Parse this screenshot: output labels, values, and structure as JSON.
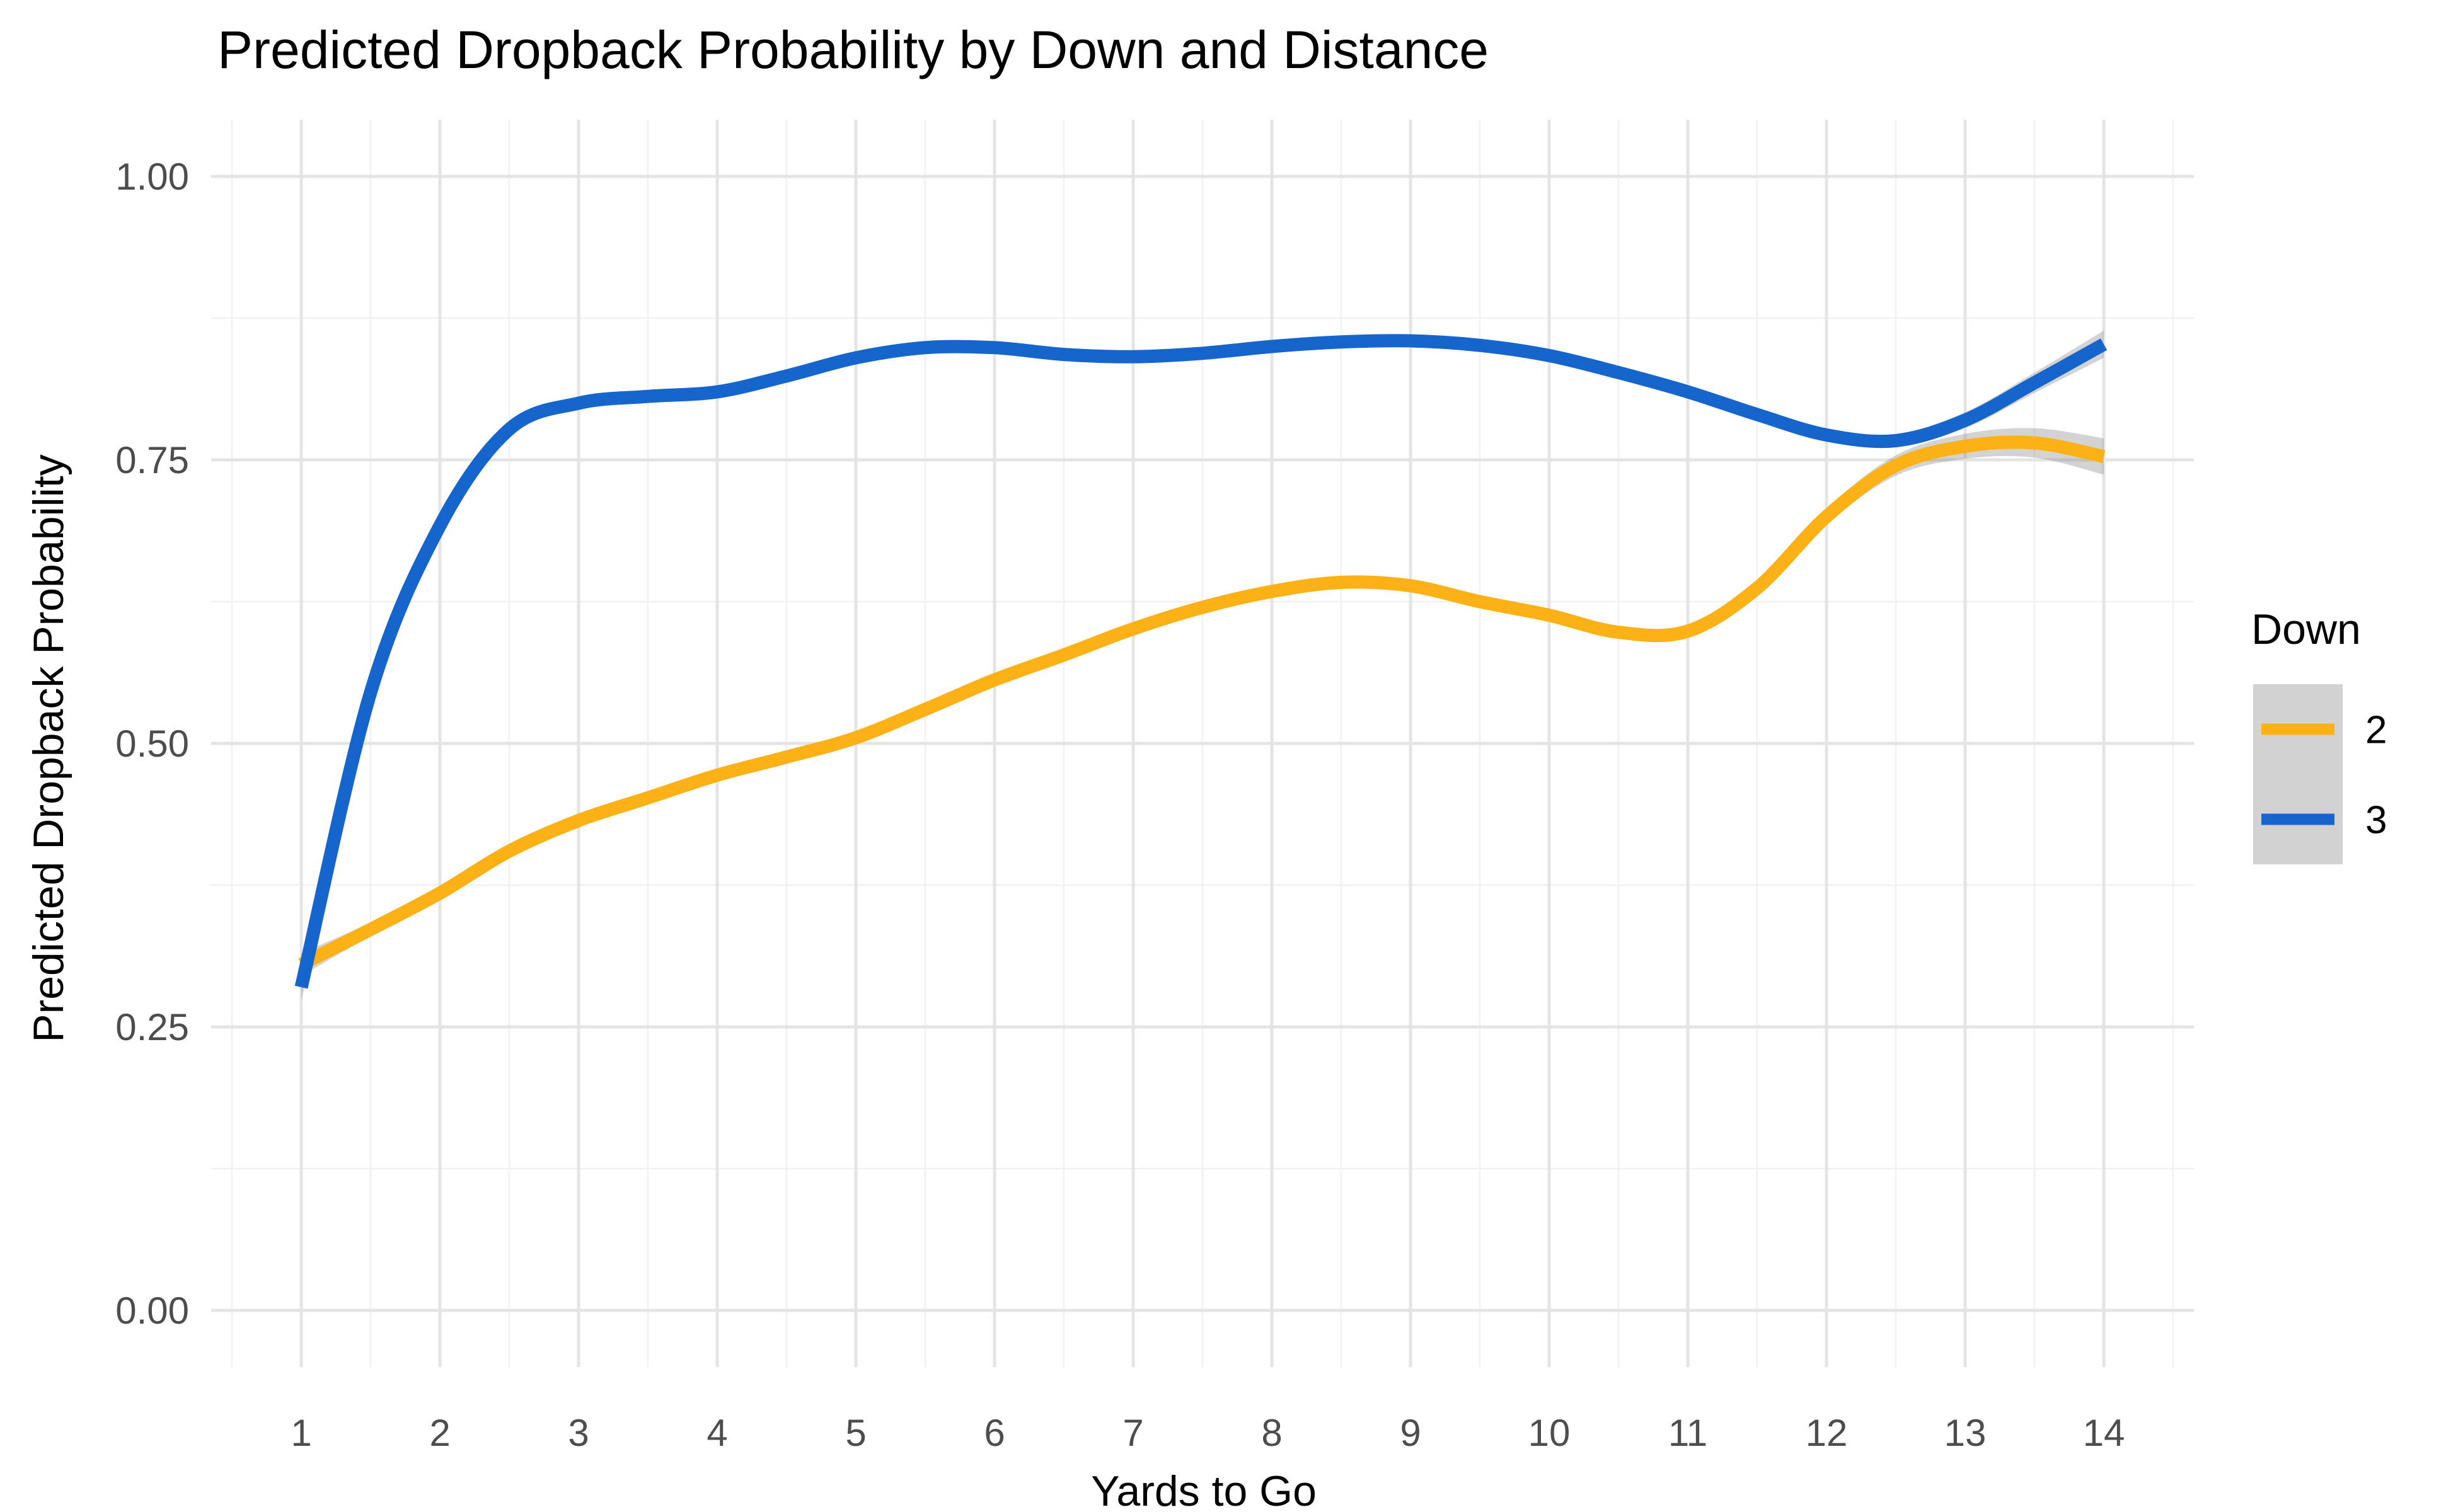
{
  "chart_data": {
    "type": "line",
    "title": "Predicted Dropback Probability by Down and Distance",
    "xlabel": "Yards to Go",
    "ylabel": "Predicted Dropback Probability",
    "x_ticks": [
      1,
      2,
      3,
      4,
      5,
      6,
      7,
      8,
      9,
      10,
      11,
      12,
      13,
      14
    ],
    "y_ticks": [
      "0.00",
      "0.25",
      "0.50",
      "0.75",
      "1.00"
    ],
    "y_tick_values": [
      0,
      0.25,
      0.5,
      0.75,
      1.0
    ],
    "xlim": [
      0.35,
      14.65
    ],
    "ylim": [
      -0.05,
      1.05
    ],
    "x_minor_step": 0.5,
    "y_minor_step": 0.125,
    "grid": true,
    "legend": {
      "title": "Down",
      "position": "right",
      "entries": [
        {
          "label": "2",
          "color": "#FCB216"
        },
        {
          "label": "3",
          "color": "#1565CD"
        }
      ]
    },
    "x": [
      1,
      1.5,
      2,
      2.5,
      3,
      3.5,
      4,
      4.5,
      5,
      5.5,
      6,
      6.5,
      7,
      7.5,
      8,
      8.5,
      9,
      9.5,
      10,
      10.5,
      11,
      11.5,
      12,
      12.5,
      13,
      13.5,
      14
    ],
    "series": [
      {
        "name": "2",
        "color": "#FCB216",
        "values": [
          0.305,
          0.336,
          0.368,
          0.405,
          0.432,
          0.452,
          0.472,
          0.488,
          0.505,
          0.53,
          0.556,
          0.578,
          0.601,
          0.62,
          0.634,
          0.642,
          0.639,
          0.625,
          0.613,
          0.598,
          0.599,
          0.637,
          0.7,
          0.745,
          0.762,
          0.765,
          0.753
        ],
        "ci_halfwidth": [
          0.01,
          0.006,
          0.005,
          0.004,
          0.004,
          0.003,
          0.003,
          0.003,
          0.003,
          0.003,
          0.003,
          0.003,
          0.003,
          0.003,
          0.003,
          0.003,
          0.003,
          0.004,
          0.004,
          0.005,
          0.006,
          0.006,
          0.007,
          0.009,
          0.011,
          0.013,
          0.016
        ]
      },
      {
        "name": "3",
        "color": "#1565CD",
        "values": [
          0.285,
          0.545,
          0.692,
          0.777,
          0.8,
          0.806,
          0.81,
          0.824,
          0.84,
          0.849,
          0.849,
          0.843,
          0.841,
          0.844,
          0.85,
          0.854,
          0.855,
          0.851,
          0.842,
          0.827,
          0.81,
          0.79,
          0.772,
          0.767,
          0.785,
          0.818,
          0.852
        ],
        "ci_halfwidth": [
          0.012,
          0.007,
          0.005,
          0.004,
          0.004,
          0.003,
          0.003,
          0.003,
          0.002,
          0.002,
          0.002,
          0.002,
          0.002,
          0.002,
          0.002,
          0.002,
          0.002,
          0.002,
          0.003,
          0.003,
          0.004,
          0.004,
          0.005,
          0.006,
          0.007,
          0.009,
          0.012
        ]
      }
    ],
    "colors": {
      "background": "#FFFFFF",
      "grid_major": "#E4E4E4",
      "grid_minor": "#F1F1F1",
      "ribbon": "#8C8C8C",
      "ribbon_opacity": 0.38,
      "title_text": "#000000",
      "tick_text": "#4D4D4D",
      "legend_key_fill": "#D2D2D2"
    }
  }
}
